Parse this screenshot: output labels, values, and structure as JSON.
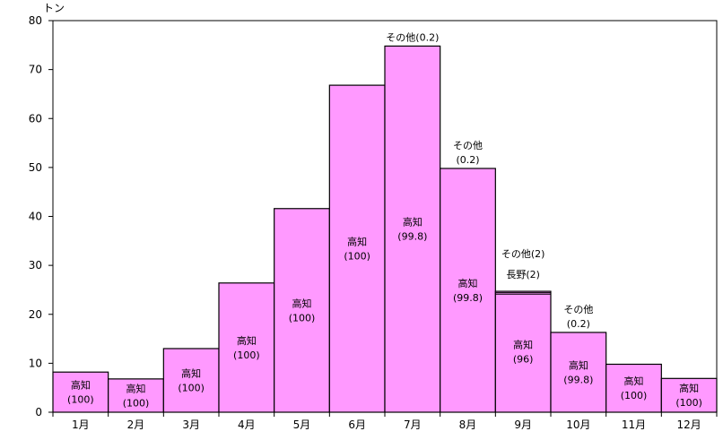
{
  "chart_data": {
    "type": "bar",
    "ylabel": "トン",
    "ylim": [
      0,
      80
    ],
    "yticks": [
      0,
      10,
      20,
      30,
      40,
      50,
      60,
      70,
      80
    ],
    "grid": false,
    "bar_color": "#FF99FF",
    "categories": [
      "1月",
      "2月",
      "3月",
      "4月",
      "5月",
      "6月",
      "7月",
      "8月",
      "9月",
      "10月",
      "11月",
      "12月"
    ],
    "values": [
      8.2,
      6.8,
      13,
      26.4,
      41.6,
      66.8,
      74.8,
      49.8,
      24.7,
      16.3,
      9.8,
      6.9
    ],
    "inner_labels": [
      [
        "高知",
        "(100)"
      ],
      [
        "高知",
        "(100)"
      ],
      [
        "高知",
        "(100)"
      ],
      [
        "高知",
        "(100)"
      ],
      [
        "高知",
        "(100)"
      ],
      [
        "高知",
        "(100)"
      ],
      [
        "高知",
        "(99.8)"
      ],
      [
        "高知",
        "(99.8)"
      ],
      [
        "高知",
        "(96)"
      ],
      [
        "高知",
        "(99.8)"
      ],
      [
        "高知",
        "(100)"
      ],
      [
        "高知",
        "(100)"
      ]
    ],
    "annotations": [
      {
        "category_index": 6,
        "lines": [
          "その他(0.2)"
        ]
      },
      {
        "category_index": 7,
        "lines": [
          "その他",
          "(0.2)"
        ]
      },
      {
        "category_index": 8,
        "lines": [
          "その他(2)",
          "長野(2)"
        ]
      },
      {
        "category_index": 9,
        "lines": [
          "その他",
          "(0.2)"
        ]
      }
    ]
  }
}
